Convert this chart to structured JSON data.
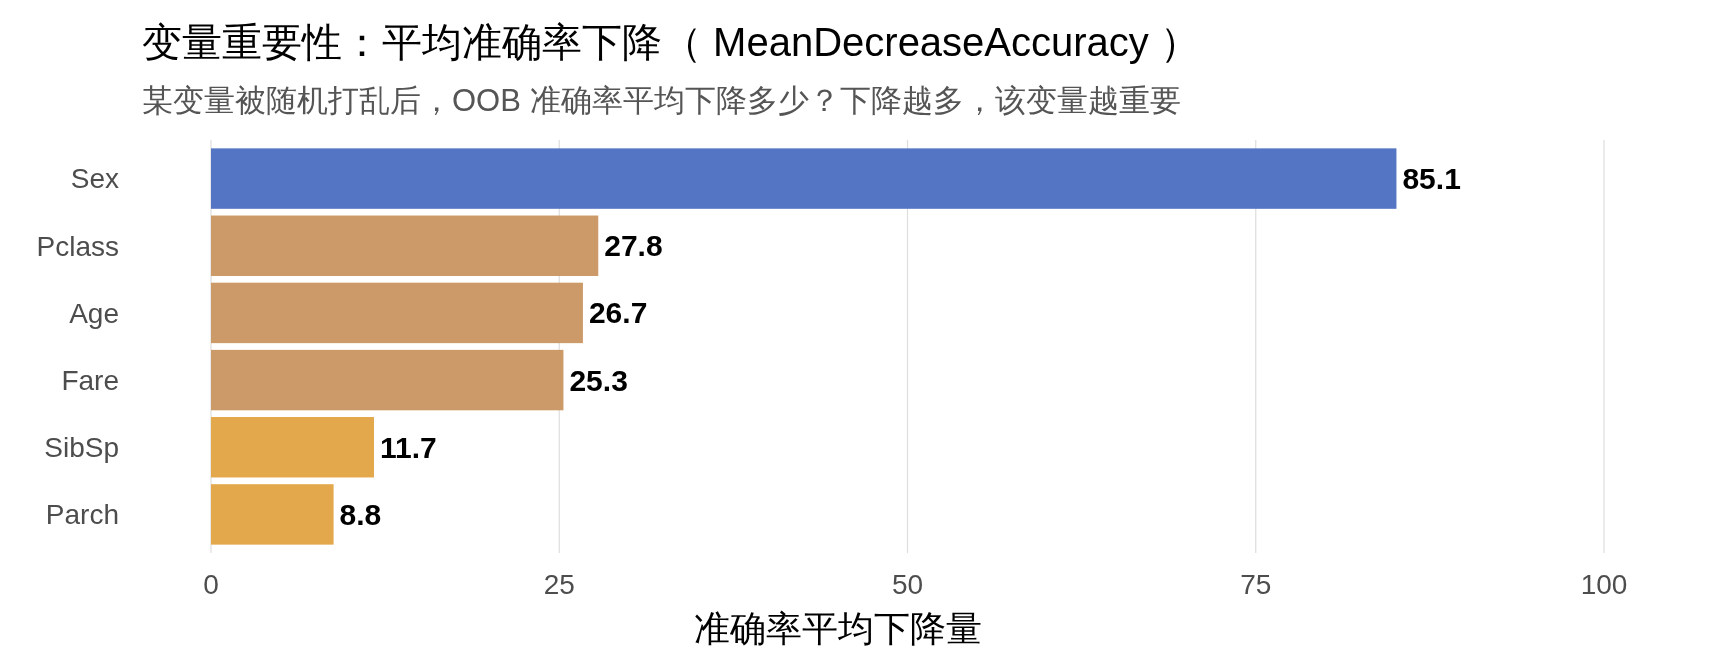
{
  "chart_data": {
    "type": "bar",
    "orientation": "horizontal",
    "title": "变量重要性：平均准确率下降（ MeanDecreaseAccuracy ）",
    "subtitle": "某变量被随机打乱后，OOB 准确率平均下降多少？下降越多，该变量越重要",
    "xlabel": "准确率平均下降量",
    "categories": [
      "Sex",
      "Pclass",
      "Age",
      "Fare",
      "SibSp",
      "Parch"
    ],
    "values": [
      85.1,
      27.8,
      26.7,
      25.3,
      11.7,
      8.8
    ],
    "colors": [
      "#5474c4",
      "#cc9a68",
      "#cc9a68",
      "#cc9a68",
      "#e3a84b",
      "#e3a84b"
    ],
    "xlim": [
      0,
      100
    ],
    "xticks": [
      0,
      25,
      50,
      75,
      100
    ],
    "grid": "x",
    "data_labels": true
  }
}
